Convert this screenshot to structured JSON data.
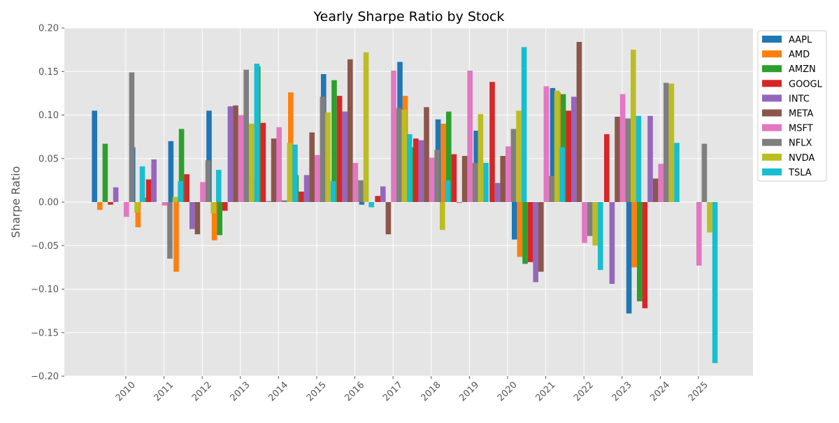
{
  "chart_data": {
    "type": "bar",
    "title": "Yearly Sharpe Ratio by Stock",
    "xlabel": "",
    "ylabel": "Sharpe Ratio",
    "ylim": [
      -0.2,
      0.2
    ],
    "yticks": [
      "−0.20",
      "−0.15",
      "−0.10",
      "−0.05",
      "0.00",
      "0.05",
      "0.10",
      "0.15",
      "0.20"
    ],
    "grid": true,
    "legend_position": "outside-top-right",
    "categories": [
      "2010",
      "2011",
      "2012",
      "2013",
      "2014",
      "2015",
      "2016",
      "2017",
      "2018",
      "2019",
      "2020",
      "2021",
      "2022",
      "2023",
      "2024",
      "2025"
    ],
    "series": [
      {
        "name": "AAPL",
        "color": "#1f77b4",
        "values": [
          0.105,
          0.063,
          0.07,
          0.105,
          0.0,
          0.0,
          0.147,
          -0.003,
          0.161,
          0.095,
          0.082,
          -0.043,
          0.131,
          0.0,
          -0.128,
          0.0
        ]
      },
      {
        "name": "AMD",
        "color": "#ff7f0e",
        "values": [
          -0.009,
          -0.029,
          -0.08,
          -0.044,
          0.025,
          0.126,
          0.0,
          0.0,
          0.122,
          0.09,
          0.0,
          -0.063,
          0.126,
          -0.011,
          -0.075,
          0.0
        ]
      },
      {
        "name": "AMZN",
        "color": "#2ca02c",
        "values": [
          0.067,
          0.005,
          0.084,
          -0.038,
          0.156,
          0.031,
          0.14,
          0.0,
          0.063,
          0.104,
          0.0,
          -0.071,
          0.124,
          0.0,
          -0.114,
          0.0
        ]
      },
      {
        "name": "GOOGL",
        "color": "#d62728",
        "values": [
          -0.003,
          0.026,
          0.032,
          -0.01,
          0.091,
          0.012,
          0.122,
          0.007,
          0.073,
          0.055,
          0.138,
          -0.069,
          0.105,
          0.078,
          -0.122,
          0.0
        ]
      },
      {
        "name": "INTC",
        "color": "#9467bd",
        "values": [
          0.017,
          0.049,
          -0.031,
          0.11,
          0.001,
          0.031,
          0.104,
          0.018,
          0.071,
          -0.001,
          0.022,
          -0.092,
          0.121,
          -0.094,
          0.099,
          0.0
        ]
      },
      {
        "name": "META",
        "color": "#8c564b",
        "values": [
          0.0,
          0.0,
          -0.037,
          0.111,
          0.073,
          0.08,
          0.164,
          -0.037,
          0.109,
          0.053,
          0.053,
          -0.08,
          0.184,
          0.098,
          0.027,
          0.0
        ]
      },
      {
        "name": "MSFT",
        "color": "#e377c2",
        "values": [
          -0.017,
          -0.004,
          0.023,
          0.1,
          0.086,
          0.054,
          0.045,
          0.151,
          0.051,
          0.151,
          0.064,
          0.133,
          -0.047,
          0.124,
          0.044,
          -0.073
        ]
      },
      {
        "name": "NFLX",
        "color": "#7f7f7f",
        "values": [
          0.149,
          -0.065,
          0.048,
          0.152,
          0.002,
          0.121,
          0.025,
          0.108,
          0.06,
          0.045,
          0.084,
          0.03,
          -0.039,
          0.096,
          0.137,
          0.067
        ]
      },
      {
        "name": "NVDA",
        "color": "#bcbd22",
        "values": [
          -0.012,
          0.006,
          -0.013,
          0.09,
          0.068,
          0.103,
          0.172,
          0.106,
          -0.032,
          0.101,
          0.105,
          0.128,
          -0.05,
          0.175,
          0.136,
          -0.035
        ]
      },
      {
        "name": "TSLA",
        "color": "#17becf",
        "values": [
          0.041,
          0.024,
          0.037,
          0.159,
          0.066,
          0.024,
          -0.006,
          0.078,
          0.025,
          0.045,
          0.178,
          0.063,
          -0.078,
          0.099,
          0.068,
          -0.185
        ]
      }
    ]
  }
}
